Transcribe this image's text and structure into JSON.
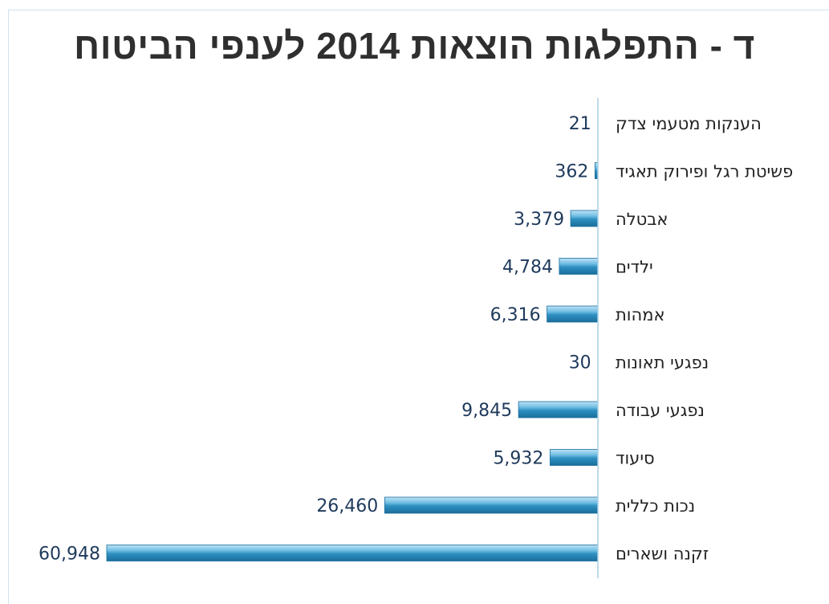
{
  "chart_data": {
    "type": "bar",
    "orientation": "horizontal",
    "title": "ד - התפלגות הוצאות 2014 לענפי הביטוח",
    "categories": [
      "הענקות מטעמי צדק",
      "פשיטת רגל ופירוק תאגיד",
      "אבטלה",
      "ילדים",
      "אמהות",
      "נפגעי תאונות",
      "נפגעי עבודה",
      "סיעוד",
      "נכות כללית",
      "זקנה ושארים"
    ],
    "values": [
      21,
      362,
      3379,
      4784,
      6316,
      30,
      9845,
      5932,
      26460,
      60948
    ],
    "value_labels": [
      "21",
      "362",
      "3,379",
      "4,784",
      "6,316",
      "30",
      "9,845",
      "5,932",
      "26,460",
      "60,948"
    ],
    "xlim": [
      0,
      60948
    ],
    "grid": false,
    "legend": "none",
    "bar_color": "#2e8fc0"
  }
}
